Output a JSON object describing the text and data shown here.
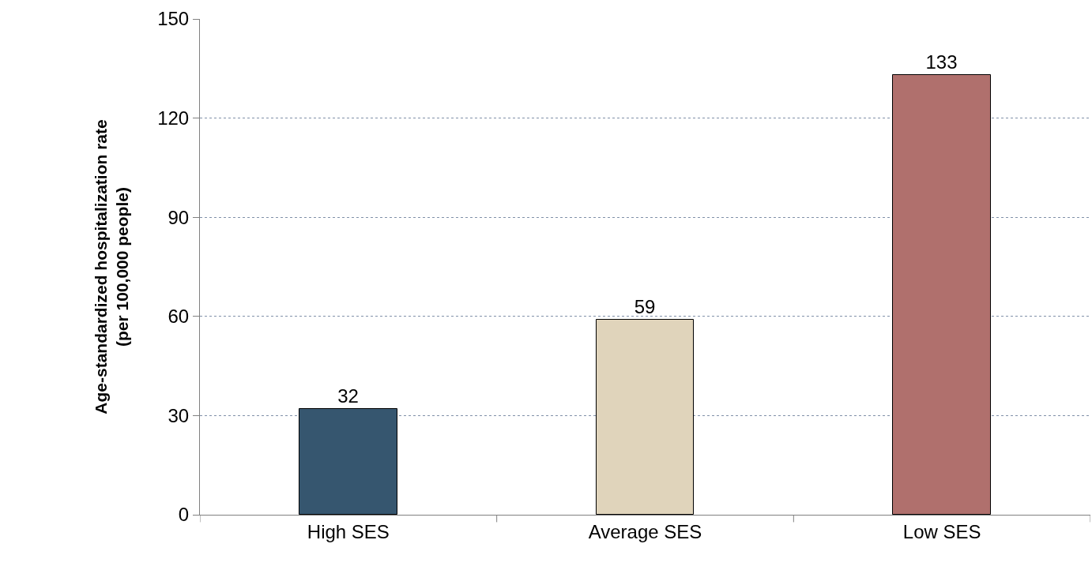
{
  "chart_data": {
    "type": "bar",
    "ylabel": "Age-standardized hospitalization rate\n(per 100,000 people)",
    "categories": [
      "High SES",
      "Average SES",
      "Low SES"
    ],
    "values": [
      32,
      59,
      133
    ],
    "colors": [
      "#36566f",
      "#e0d4bb",
      "#b0706d"
    ],
    "ylim": [
      0,
      150
    ],
    "yticks": [
      0,
      30,
      60,
      90,
      120,
      150
    ],
    "grid": "y",
    "data_labels": true
  }
}
